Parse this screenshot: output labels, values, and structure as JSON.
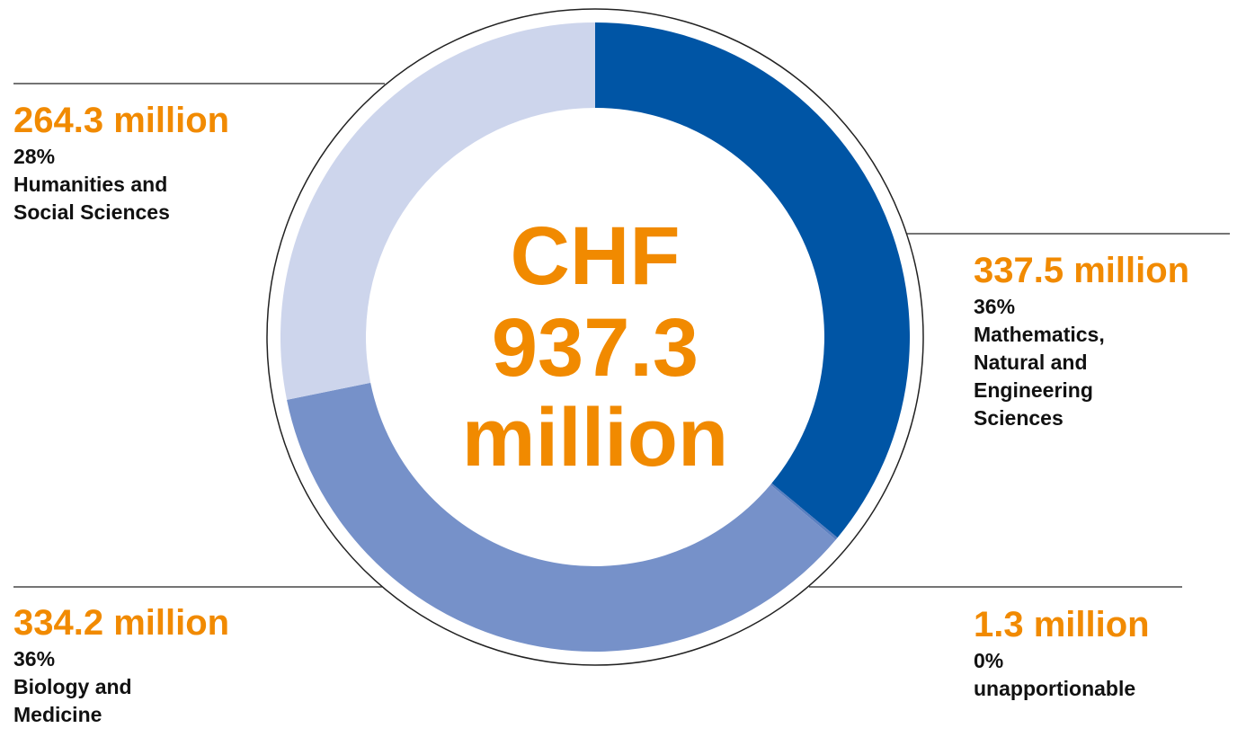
{
  "chart_data": {
    "type": "donut",
    "center_lines": [
      "CHF",
      "937.3",
      "million"
    ],
    "categories": [
      "Mathematics, Natural and Engineering Sciences",
      "unapportionable",
      "Biology and Medicine",
      "Humanities and Social Sciences"
    ],
    "values": [
      337.5,
      1.3,
      334.2,
      264.3
    ],
    "value_labels": [
      "337.5 million",
      "1.3 million",
      "334.2 million",
      "264.3 million"
    ],
    "share_labels": [
      "36%",
      "0%",
      "36%",
      "28%"
    ],
    "colors": [
      "#0055a5",
      "#5a7fc0",
      "#7691c9",
      "#cdd5ec"
    ]
  }
}
